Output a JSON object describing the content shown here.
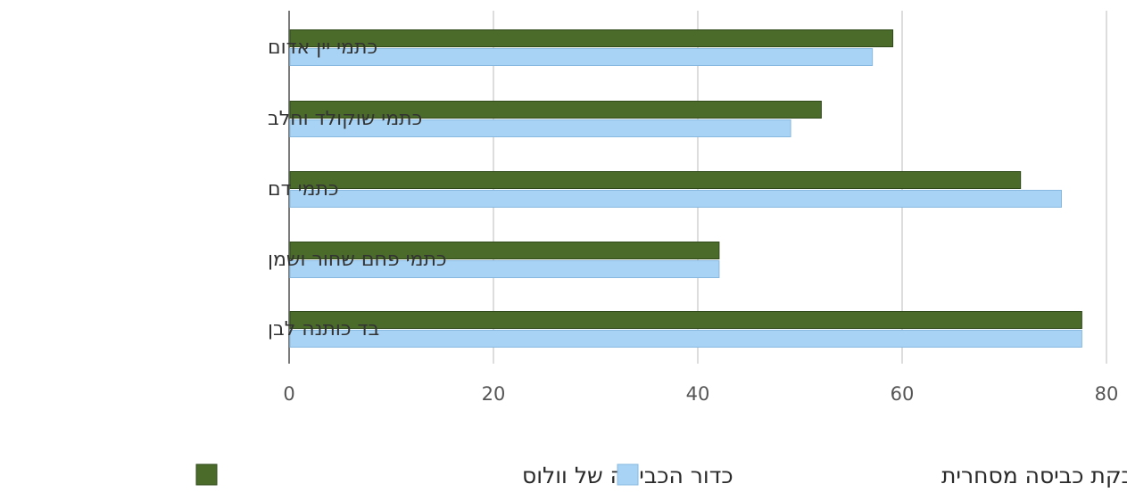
{
  "chart_data": {
    "type": "bar",
    "orientation": "horizontal",
    "categories": [
      "כתמי יין אדום",
      "כתמי שוקולד וחלב",
      "כתמי דם",
      "כתמי פחם שחור ושמן",
      "בד כותנה לבן"
    ],
    "series": [
      {
        "name": "כדור הכביסה של וולוס",
        "values": [
          59,
          52,
          71.5,
          42,
          77.5
        ],
        "color": "#4a6b2a"
      },
      {
        "name": "אבקת כביסה מסחרית",
        "values": [
          57,
          49,
          75.5,
          42,
          77.5
        ],
        "color": "#a9d3f5"
      }
    ],
    "xlim": [
      0,
      80
    ],
    "xticks": [
      "0",
      "20",
      "40",
      "60",
      "80"
    ],
    "grid": true,
    "legend_position": "bottom",
    "title": "",
    "xlabel": "",
    "ylabel": ""
  }
}
